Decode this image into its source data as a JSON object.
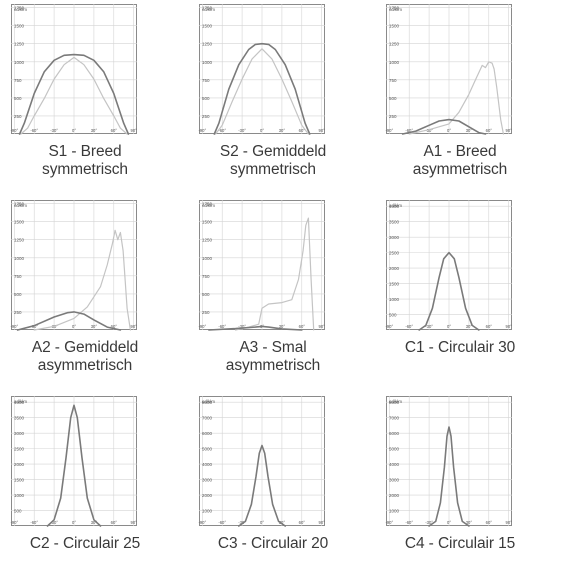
{
  "chart_data": [
    {
      "type": "line",
      "unit_label": "cd/klm",
      "caption": [
        "S1 - Breed",
        "symmetrisch"
      ],
      "yticks": [
        250,
        500,
        750,
        1000,
        1250,
        1500,
        1750
      ],
      "ylim": [
        0,
        1800
      ],
      "xticks": [
        "-90°",
        "-60°",
        "-30°",
        "0°",
        "30°",
        "60°",
        "90°"
      ],
      "xlim": [
        -95,
        95
      ],
      "series": [
        {
          "style": "dark",
          "x": [
            -82,
            -75,
            -60,
            -45,
            -30,
            -15,
            0,
            15,
            30,
            45,
            60,
            75,
            82
          ],
          "values": [
            0,
            150,
            560,
            860,
            1020,
            1090,
            1100,
            1090,
            1020,
            860,
            560,
            150,
            0
          ]
        },
        {
          "style": "light",
          "x": [
            -80,
            -70,
            -60,
            -45,
            -30,
            -15,
            0,
            15,
            30,
            45,
            60,
            70,
            80
          ],
          "values": [
            0,
            80,
            250,
            490,
            760,
            960,
            1060,
            960,
            760,
            490,
            250,
            80,
            0
          ]
        }
      ]
    },
    {
      "type": "line",
      "unit_label": "cd/klm",
      "caption": [
        "S2 - Gemiddeld",
        "symmetrisch"
      ],
      "yticks": [
        250,
        500,
        750,
        1000,
        1250,
        1500,
        1750
      ],
      "ylim": [
        0,
        1800
      ],
      "xticks": [
        "-90°",
        "-60°",
        "-30°",
        "0°",
        "30°",
        "60°",
        "90°"
      ],
      "xlim": [
        -95,
        95
      ],
      "series": [
        {
          "style": "dark",
          "x": [
            -72,
            -65,
            -50,
            -35,
            -20,
            -10,
            0,
            10,
            20,
            35,
            50,
            65,
            72
          ],
          "values": [
            0,
            150,
            620,
            960,
            1170,
            1240,
            1250,
            1240,
            1170,
            960,
            620,
            150,
            0
          ]
        },
        {
          "style": "light",
          "x": [
            -70,
            -60,
            -45,
            -30,
            -15,
            0,
            15,
            30,
            45,
            60,
            70
          ],
          "values": [
            0,
            120,
            450,
            760,
            1040,
            1180,
            1040,
            760,
            450,
            120,
            0
          ]
        }
      ]
    },
    {
      "type": "line",
      "unit_label": "cd/klm",
      "caption": [
        "A1 - Breed",
        "asymmetrisch"
      ],
      "yticks": [
        250,
        500,
        750,
        1000,
        1250,
        1500,
        1750
      ],
      "ylim": [
        0,
        1800
      ],
      "xticks": [
        "-90°",
        "-60°",
        "-30°",
        "0°",
        "30°",
        "60°",
        "90°"
      ],
      "xlim": [
        -95,
        95
      ],
      "series": [
        {
          "style": "dark",
          "x": [
            -70,
            -50,
            -30,
            -15,
            0,
            15,
            30,
            45,
            55
          ],
          "values": [
            0,
            40,
            120,
            180,
            200,
            180,
            100,
            20,
            0
          ]
        },
        {
          "style": "light",
          "x": [
            -60,
            -30,
            0,
            15,
            30,
            40,
            50,
            55,
            60,
            65,
            68,
            72,
            78,
            82
          ],
          "values": [
            0,
            60,
            140,
            300,
            550,
            750,
            950,
            920,
            1000,
            980,
            900,
            650,
            200,
            0
          ]
        }
      ]
    },
    {
      "type": "line",
      "unit_label": "cd/klm",
      "caption": [
        "A2 - Gemiddeld",
        "asymmetrisch"
      ],
      "yticks": [
        250,
        500,
        750,
        1000,
        1250,
        1500,
        1750
      ],
      "ylim": [
        0,
        1800
      ],
      "xticks": [
        "-90°",
        "-60°",
        "-30°",
        "0°",
        "30°",
        "60°",
        "90°"
      ],
      "xlim": [
        -95,
        95
      ],
      "series": [
        {
          "style": "dark",
          "x": [
            -85,
            -60,
            -30,
            -10,
            0,
            15,
            30,
            50,
            70
          ],
          "values": [
            0,
            60,
            180,
            240,
            250,
            220,
            140,
            40,
            0
          ]
        },
        {
          "style": "light",
          "x": [
            -60,
            -30,
            0,
            20,
            40,
            50,
            58,
            62,
            66,
            70,
            74,
            80,
            85
          ],
          "values": [
            0,
            50,
            160,
            320,
            600,
            900,
            1200,
            1380,
            1250,
            1350,
            1100,
            300,
            0
          ]
        }
      ]
    },
    {
      "type": "line",
      "unit_label": "cd/klm",
      "caption": [
        "A3 - Smal",
        "asymmetrisch"
      ],
      "yticks": [
        250,
        500,
        750,
        1000,
        1250,
        1500,
        1750
      ],
      "ylim": [
        0,
        1800
      ],
      "xticks": [
        "-90°",
        "-60°",
        "-30°",
        "0°",
        "30°",
        "60°",
        "90°"
      ],
      "xlim": [
        -95,
        95
      ],
      "series": [
        {
          "style": "dark",
          "x": [
            -80,
            -40,
            -10,
            0,
            10,
            30,
            60
          ],
          "values": [
            0,
            20,
            40,
            50,
            40,
            15,
            0
          ]
        },
        {
          "style": "light",
          "x": [
            -40,
            -20,
            -5,
            0,
            10,
            30,
            45,
            55,
            62,
            66,
            70,
            74,
            78
          ],
          "values": [
            0,
            40,
            80,
            300,
            360,
            380,
            420,
            700,
            1100,
            1450,
            1550,
            700,
            0
          ]
        }
      ]
    },
    {
      "type": "line",
      "unit_label": "cd/klm",
      "caption": [
        "C1 - Circulair 30"
      ],
      "yticks": [
        500,
        1000,
        1500,
        2000,
        2500,
        3000,
        3500,
        4000
      ],
      "ylim": [
        0,
        4200
      ],
      "xticks": [
        "-90°",
        "-60°",
        "-30°",
        "0°",
        "30°",
        "60°",
        "90°"
      ],
      "xlim": [
        -95,
        95
      ],
      "series": [
        {
          "style": "dark",
          "x": [
            -45,
            -35,
            -25,
            -15,
            -8,
            0,
            8,
            15,
            25,
            35,
            45
          ],
          "values": [
            0,
            150,
            700,
            1700,
            2300,
            2500,
            2300,
            1700,
            700,
            150,
            0
          ]
        }
      ]
    },
    {
      "type": "line",
      "unit_label": "cd/klm",
      "caption": [
        "C2 - Circulair 25"
      ],
      "yticks": [
        500,
        1000,
        1500,
        2000,
        2500,
        3000,
        3500,
        4000
      ],
      "ylim": [
        0,
        4200
      ],
      "xticks": [
        "-90°",
        "-60°",
        "-30°",
        "0°",
        "30°",
        "60°",
        "90°"
      ],
      "xlim": [
        -95,
        95
      ],
      "series": [
        {
          "style": "dark",
          "x": [
            -40,
            -30,
            -20,
            -12,
            -5,
            0,
            5,
            12,
            20,
            30,
            40
          ],
          "values": [
            0,
            200,
            900,
            2200,
            3500,
            3900,
            3500,
            2200,
            900,
            200,
            0
          ]
        }
      ]
    },
    {
      "type": "line",
      "unit_label": "cd/klm",
      "caption": [
        "C3 - Circulair 20"
      ],
      "yticks": [
        1000,
        2000,
        3000,
        4000,
        5000,
        6000,
        7000,
        8000
      ],
      "ylim": [
        0,
        8400
      ],
      "xticks": [
        "-90°",
        "-60°",
        "-30°",
        "0°",
        "30°",
        "60°",
        "90°"
      ],
      "xlim": [
        -95,
        95
      ],
      "series": [
        {
          "style": "dark",
          "x": [
            -35,
            -25,
            -16,
            -9,
            -4,
            0,
            4,
            9,
            16,
            25,
            35
          ],
          "values": [
            0,
            300,
            1400,
            3200,
            4700,
            5200,
            4700,
            3200,
            1400,
            300,
            0
          ]
        }
      ]
    },
    {
      "type": "line",
      "unit_label": "cd/klm",
      "caption": [
        "C4 - Circulair 15"
      ],
      "yticks": [
        1000,
        2000,
        3000,
        4000,
        5000,
        6000,
        7000,
        8000
      ],
      "ylim": [
        0,
        8400
      ],
      "xticks": [
        "-90°",
        "-60°",
        "-30°",
        "0°",
        "30°",
        "60°",
        "90°"
      ],
      "xlim": [
        -95,
        95
      ],
      "series": [
        {
          "style": "dark",
          "x": [
            -30,
            -20,
            -13,
            -7,
            -3,
            0,
            3,
            7,
            13,
            20,
            30
          ],
          "values": [
            0,
            300,
            1500,
            3800,
            5800,
            6400,
            5800,
            3800,
            1500,
            300,
            0
          ]
        }
      ]
    }
  ]
}
